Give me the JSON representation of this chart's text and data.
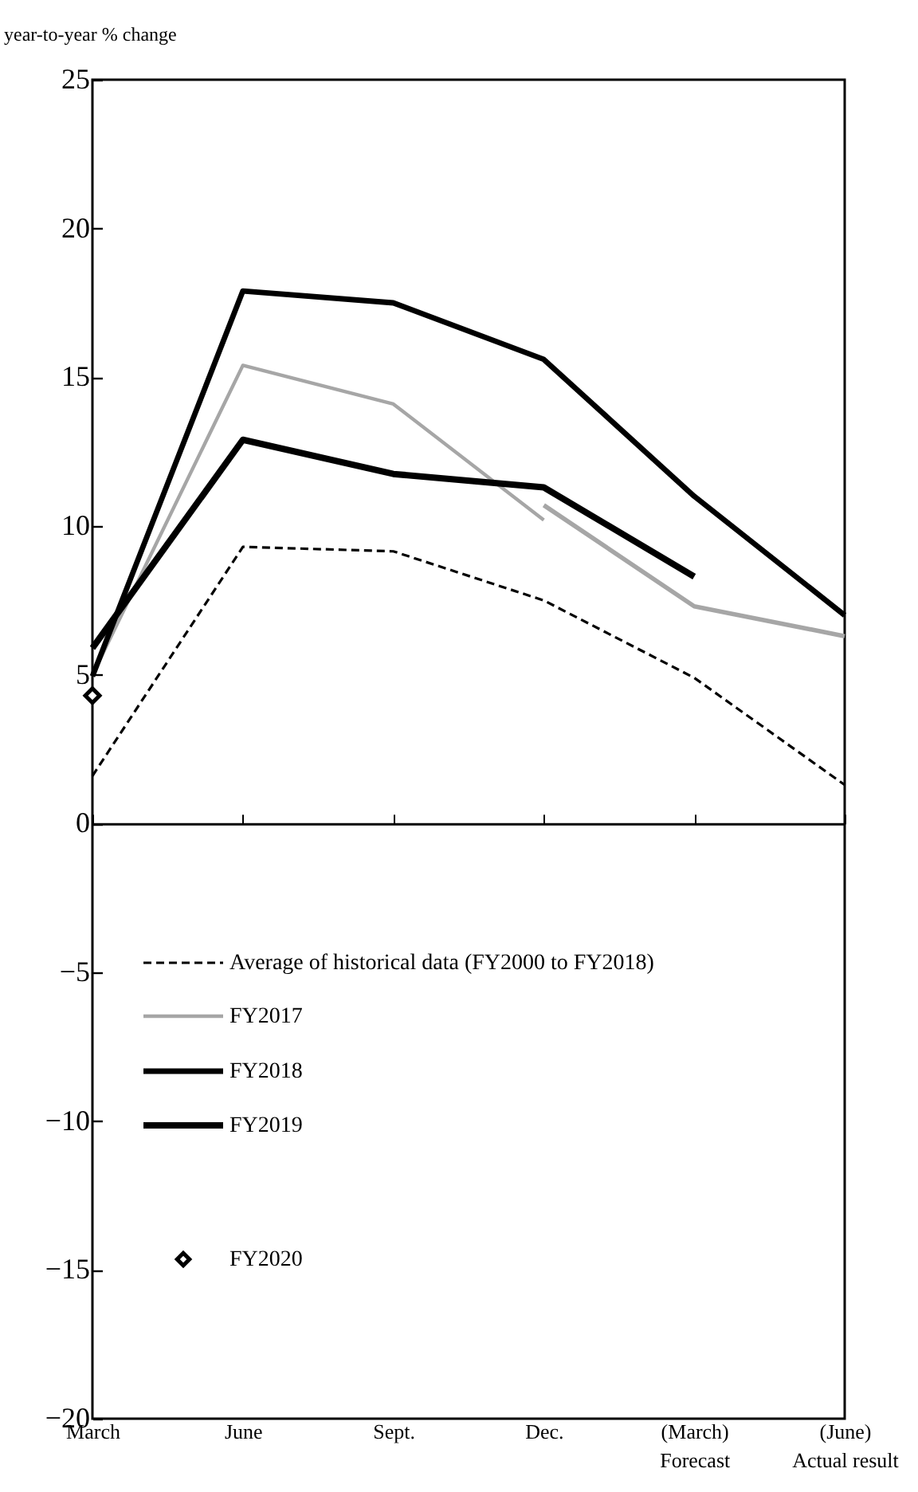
{
  "chart_data": {
    "type": "line",
    "ylabel": "year-to-year % change",
    "categories": [
      "March",
      "June",
      "Sept.",
      "Dec.",
      "(March)\nForecast",
      "(June)\nActual result"
    ],
    "ylim": [
      -20,
      25
    ],
    "yticks": [
      -20,
      -15,
      -10,
      -5,
      0,
      5,
      10,
      15,
      20,
      25
    ],
    "legend": "bottom left",
    "series": [
      {
        "name": "Average of historical data (FY2000 to FY2018)",
        "color": "#000000",
        "line_style": "dashed",
        "values": [
          1.6,
          9.3,
          9.15,
          7.5,
          4.9,
          1.3
        ]
      },
      {
        "name": "FY2017",
        "color": "#a6a6a6",
        "values": [
          5.0,
          15.4,
          14.1,
          10.2,
          null,
          null
        ]
      },
      {
        "color": "#a6a6a6",
        "values": [
          null,
          null,
          null,
          10.7,
          7.3,
          6.3
        ]
      },
      {
        "name": "FY2018",
        "color": "#000000",
        "values": [
          4.95,
          17.9,
          17.5,
          15.6,
          11.0,
          7.0
        ]
      },
      {
        "name": "FY2019",
        "color": "#000000",
        "values": [
          5.9,
          12.9,
          11.75,
          11.3,
          8.3,
          null
        ]
      },
      {
        "name": "FY2020",
        "type": "scatter",
        "marker": "diamond",
        "color": "#000000",
        "x": [
          "March"
        ],
        "values": [
          4.3
        ]
      }
    ]
  }
}
